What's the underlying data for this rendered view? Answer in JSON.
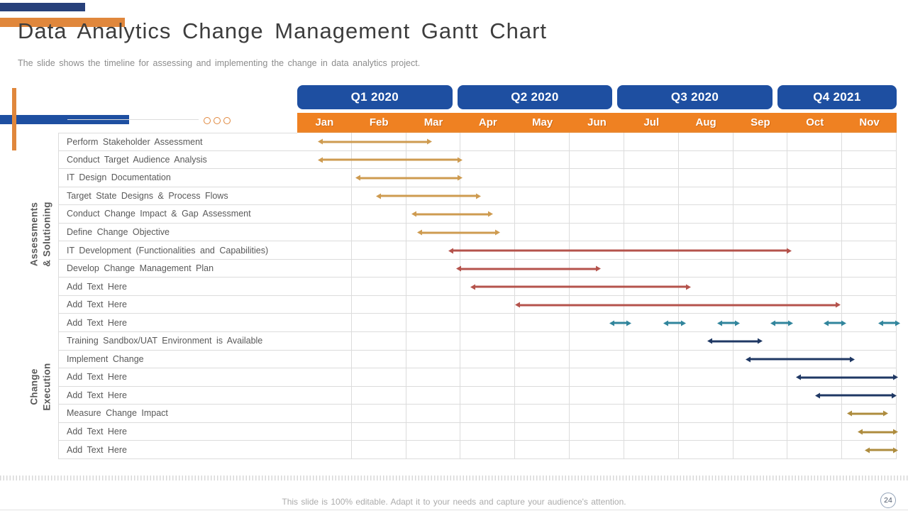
{
  "slide": {
    "title": "Data Analytics Change Management Gantt Chart",
    "subtitle": "The slide shows the timeline for assessing and implementing the change in data analytics project.",
    "footer_note": "This slide is 100% editable. Adapt it to your needs and capture your audience's attention.",
    "page_number": "24"
  },
  "colors": {
    "quarter_bg": "#1E4FA1",
    "month_bg": "#EF8122",
    "accent_orange": "#E0873C",
    "accent_navy": "#27407A",
    "bar_tan": "#CE9B50",
    "bar_red": "#B5534C",
    "bar_teal": "#31859C",
    "bar_navy": "#1F3864",
    "bar_gold": "#AE8C3E"
  },
  "chart_data": {
    "type": "gantt",
    "title": "Data Analytics Change Management Gantt Chart",
    "axis_note": "bar start/end are in month units; 0 = start of Jan, 11 = end of Nov",
    "quarters": [
      {
        "label": "Q1 2020",
        "months": 3
      },
      {
        "label": "Q2 2020",
        "months": 3
      },
      {
        "label": "Q3 2020",
        "months": 3
      },
      {
        "label": "Q4 2021",
        "months": 2
      }
    ],
    "months": [
      "Jan",
      "Feb",
      "Mar",
      "Apr",
      "May",
      "Jun",
      "Jul",
      "Aug",
      "Sep",
      "Oct",
      "Nov"
    ],
    "sections": [
      {
        "label": "Assessments\n& Solutioning",
        "task_range": [
          0,
          8
        ]
      },
      {
        "label": "Change\nExecution",
        "task_range": [
          9,
          17
        ]
      }
    ],
    "tasks": [
      {
        "label": "Perform Stakeholder Assessment",
        "bars": [
          {
            "start": 0.45,
            "end": 2.4,
            "color": "bar_tan"
          }
        ]
      },
      {
        "label": "Conduct Target Audience Analysis",
        "bars": [
          {
            "start": 0.45,
            "end": 2.95,
            "color": "bar_tan"
          }
        ]
      },
      {
        "label": "IT Design Documentation",
        "bars": [
          {
            "start": 1.15,
            "end": 2.95,
            "color": "bar_tan"
          }
        ]
      },
      {
        "label": "Target State Designs & Process Flows",
        "bars": [
          {
            "start": 1.52,
            "end": 3.3,
            "color": "bar_tan"
          }
        ]
      },
      {
        "label": "Conduct Change Impact & Gap Assessment",
        "bars": [
          {
            "start": 2.17,
            "end": 3.52,
            "color": "bar_tan"
          }
        ]
      },
      {
        "label": "Define Change Objective",
        "bars": [
          {
            "start": 2.28,
            "end": 3.64,
            "color": "bar_tan"
          }
        ]
      },
      {
        "label": "IT Development (Functionalities and Capabilities)",
        "bars": [
          {
            "start": 2.85,
            "end": 9.0,
            "color": "bar_red"
          }
        ]
      },
      {
        "label": "Develop Change Management Plan",
        "bars": [
          {
            "start": 3.0,
            "end": 5.5,
            "color": "bar_red"
          }
        ]
      },
      {
        "label": "Add Text Here",
        "bars": [
          {
            "start": 3.25,
            "end": 7.15,
            "color": "bar_red"
          }
        ]
      },
      {
        "label": "Add Text Here",
        "bars": [
          {
            "start": 4.08,
            "end": 9.9,
            "color": "bar_red"
          }
        ]
      },
      {
        "label": "Add Text Here",
        "bars": [
          {
            "start": 5.8,
            "end": 6.05,
            "color": "bar_teal"
          },
          {
            "start": 6.8,
            "end": 7.05,
            "color": "bar_teal"
          },
          {
            "start": 7.78,
            "end": 8.04,
            "color": "bar_teal"
          },
          {
            "start": 8.76,
            "end": 9.02,
            "color": "bar_teal"
          },
          {
            "start": 9.74,
            "end": 10.0,
            "color": "bar_teal"
          },
          {
            "start": 10.74,
            "end": 10.99,
            "color": "bar_teal"
          }
        ]
      },
      {
        "label": "Training Sandbox/UAT Environment is Available",
        "bars": [
          {
            "start": 7.6,
            "end": 8.46,
            "color": "bar_navy"
          }
        ]
      },
      {
        "label": "Implement Change",
        "bars": [
          {
            "start": 8.3,
            "end": 10.15,
            "color": "bar_navy"
          }
        ]
      },
      {
        "label": "Add Text Here",
        "bars": [
          {
            "start": 9.23,
            "end": 10.95,
            "color": "bar_navy"
          }
        ]
      },
      {
        "label": "Add Text Here",
        "bars": [
          {
            "start": 9.58,
            "end": 10.92,
            "color": "bar_navy"
          }
        ]
      },
      {
        "label": "Measure Change Impact",
        "bars": [
          {
            "start": 10.17,
            "end": 10.76,
            "color": "bar_gold"
          }
        ]
      },
      {
        "label": "Add Text Here",
        "bars": [
          {
            "start": 10.36,
            "end": 10.95,
            "color": "bar_gold"
          }
        ]
      },
      {
        "label": "Add Text Here",
        "bars": [
          {
            "start": 10.49,
            "end": 10.95,
            "color": "bar_gold"
          }
        ]
      }
    ]
  }
}
